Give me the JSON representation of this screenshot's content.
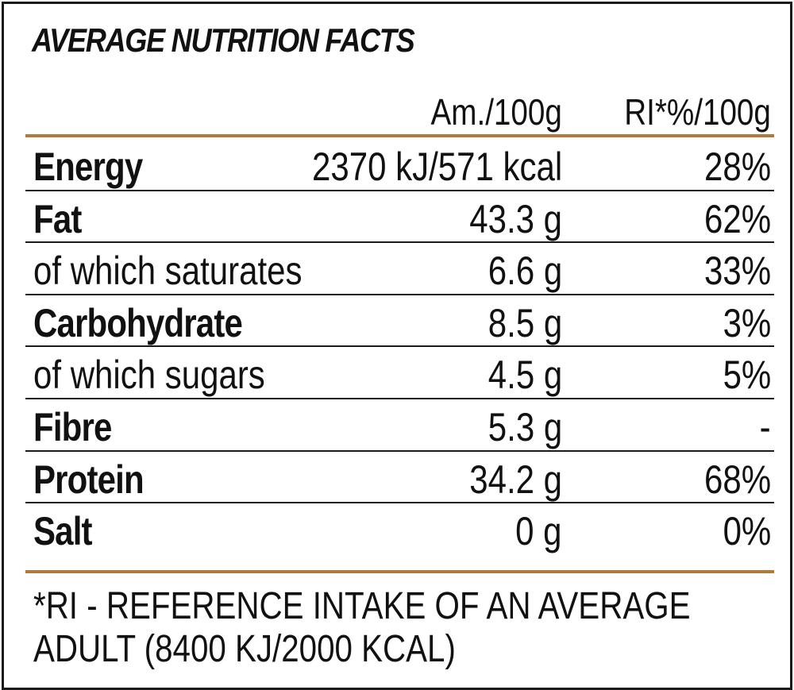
{
  "title": "AVERAGE NUTRITION FACTS",
  "columns": {
    "amount": "Am./100g",
    "ri": "RI*%/100g"
  },
  "rows": [
    {
      "name": "Energy",
      "amount": "2370 kJ/571 kcal",
      "ri": "28%",
      "bold": true
    },
    {
      "name": "Fat",
      "amount": "43.3 g",
      "ri": "62%",
      "bold": true
    },
    {
      "name": "of which saturates",
      "amount": "6.6 g",
      "ri": "33%",
      "bold": false
    },
    {
      "name": "Carbohydrate",
      "amount": "8.5 g",
      "ri": "3%",
      "bold": true
    },
    {
      "name": "of which sugars",
      "amount": "4.5 g",
      "ri": "5%",
      "bold": false
    },
    {
      "name": "Fibre",
      "amount": "5.3 g",
      "ri": "-",
      "bold": true
    },
    {
      "name": "Protein",
      "amount": "34.2 g",
      "ri": "68%",
      "bold": true
    },
    {
      "name": "Salt",
      "amount": "0 g",
      "ri": "0%",
      "bold": true
    }
  ],
  "footnote": {
    "line1": "*RI - REFERENCE INTAKE OF AN AVERAGE",
    "line2": "ADULT (8400 KJ/2000 KCAL)"
  },
  "colors": {
    "accent_rule": "#b07a3c",
    "border": "#1a1a1a",
    "text": "#111111"
  }
}
